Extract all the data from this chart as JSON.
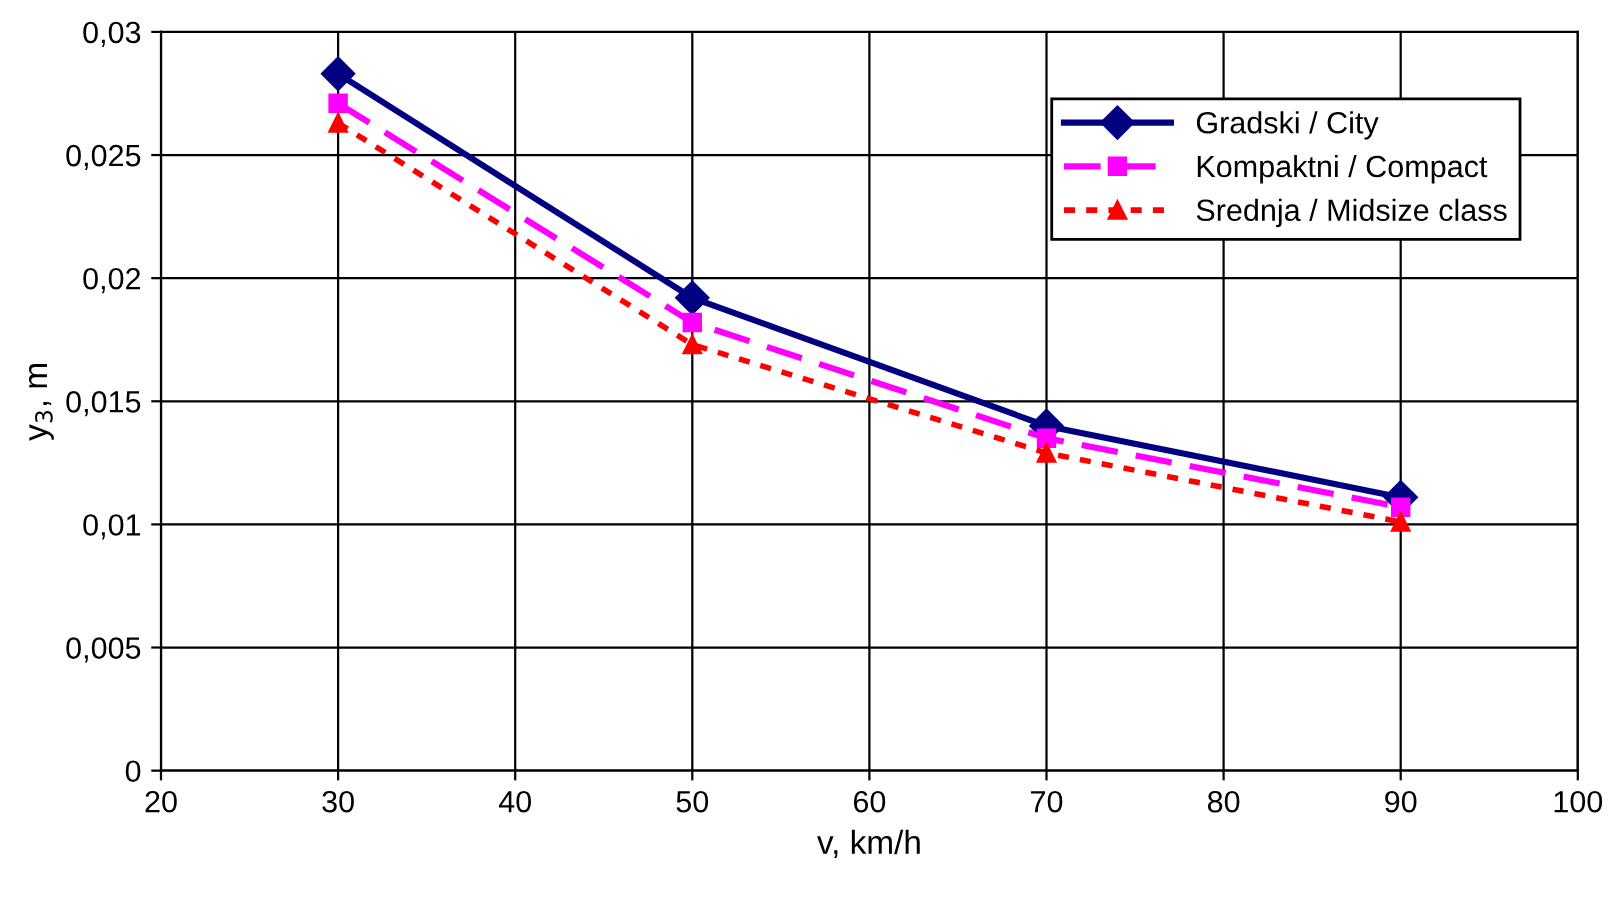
{
  "chart_data": {
    "type": "line",
    "xlabel": "v, km/h",
    "ylabel": "y$_{3}$, m",
    "x": [
      30,
      50,
      70,
      90
    ],
    "series": [
      {
        "name": "Gradski / City",
        "color": "#000080",
        "values": [
          0.0283,
          0.0192,
          0.014,
          0.0111
        ],
        "marker": "diamond",
        "line_style": "solid"
      },
      {
        "name": "Kompaktni / Compact",
        "color": "#ff00ff",
        "values": [
          0.0271,
          0.0182,
          0.0135,
          0.0107
        ],
        "marker": "square",
        "line_style": "dashed"
      },
      {
        "name": "Srednja / Midsize class",
        "color": "#ff0000",
        "values": [
          0.0263,
          0.0173,
          0.0129,
          0.0101
        ],
        "marker": "triangle",
        "line_style": "dotted"
      }
    ],
    "xlim": [
      20,
      100
    ],
    "xticks": [
      20,
      30,
      40,
      50,
      60,
      70,
      80,
      90,
      100
    ],
    "ylim": [
      0,
      0.03
    ],
    "yticks": [
      0,
      {
        "value": 0.005,
        "label": "0,005"
      },
      {
        "value": 0.01,
        "label": "0,01"
      },
      {
        "value": 0.015,
        "label": "0,015"
      },
      {
        "value": 0.02,
        "label": "0,02"
      },
      {
        "value": 0.025,
        "label": "0,025"
      },
      {
        "value": 0.03,
        "label": "0,03"
      }
    ],
    "grid": true,
    "legend": "top right"
  }
}
